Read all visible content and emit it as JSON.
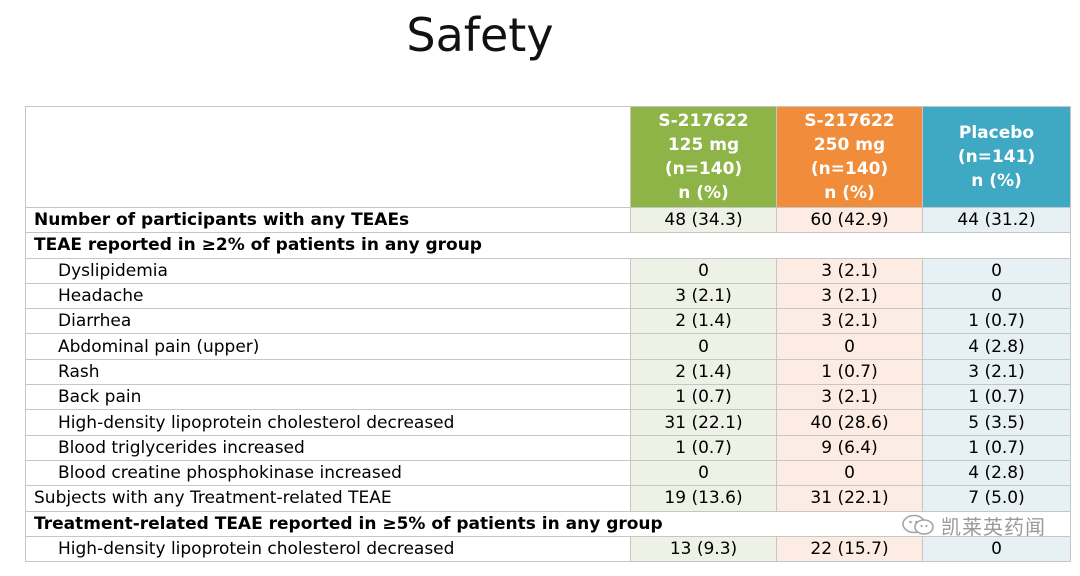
{
  "title": "Safety",
  "header": {
    "col1": [
      "S-217622",
      "125 mg",
      "(n=140)",
      "n (%)"
    ],
    "col2": [
      "S-217622",
      "250 mg",
      "(n=140)",
      "n (%)"
    ],
    "col3": [
      "Placebo",
      "(n=141)",
      "n (%)"
    ]
  },
  "colors": {
    "col1": "#8eb346",
    "col2": "#f08c3a",
    "col3": "#3fa8c3"
  },
  "rows": [
    {
      "label": "Number of participants with any TEAEs",
      "v1": "48 (34.3)",
      "v2": "60 (42.9)",
      "v3": "44 (31.2)"
    },
    {
      "label": "TEAE reported in ≥2% of patients in any group"
    },
    {
      "label": "Dyslipidemia",
      "v1": "0",
      "v2": "3 (2.1)",
      "v3": "0"
    },
    {
      "label": "Headache",
      "v1": "3 (2.1)",
      "v2": "3 (2.1)",
      "v3": "0"
    },
    {
      "label": "Diarrhea",
      "v1": "2 (1.4)",
      "v2": "3 (2.1)",
      "v3": "1 (0.7)"
    },
    {
      "label": "Abdominal pain (upper)",
      "v1": "0",
      "v2": "0",
      "v3": "4 (2.8)"
    },
    {
      "label": "Rash",
      "v1": "2 (1.4)",
      "v2": "1 (0.7)",
      "v3": "3 (2.1)"
    },
    {
      "label": "Back pain",
      "v1": "1 (0.7)",
      "v2": "3 (2.1)",
      "v3": "1 (0.7)"
    },
    {
      "label": "High-density lipoprotein cholesterol decreased",
      "v1": "31 (22.1)",
      "v2": "40 (28.6)",
      "v3": "5 (3.5)"
    },
    {
      "label": "Blood triglycerides increased",
      "v1": "1 (0.7)",
      "v2": "9 (6.4)",
      "v3": "1 (0.7)"
    },
    {
      "label": "Blood creatine phosphokinase increased",
      "v1": "0",
      "v2": "0",
      "v3": "4 (2.8)"
    },
    {
      "label": "Subjects with any Treatment-related TEAE",
      "v1": "19 (13.6)",
      "v2": "31 (22.1)",
      "v3": "7 (5.0)"
    },
    {
      "label": "Treatment-related TEAE reported in ≥5% of patients in any group"
    },
    {
      "label": "High-density lipoprotein cholesterol decreased",
      "v1": "13 (9.3)",
      "v2": "22 (15.7)",
      "v3": "0"
    }
  ],
  "watermark": {
    "text": "凯莱英药闻",
    "icon": "wechat-icon"
  }
}
